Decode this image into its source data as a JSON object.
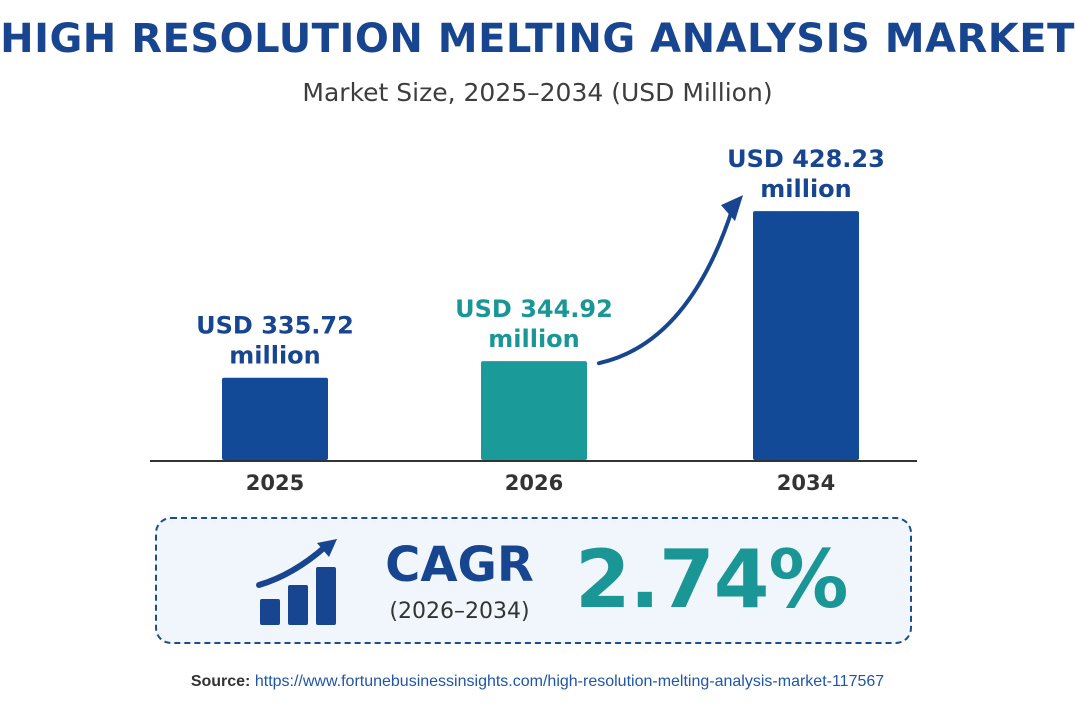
{
  "chart_data": {
    "type": "bar",
    "title": "HIGH RESOLUTION MELTING ANALYSIS MARKET",
    "subtitle": "Market Size, 2025–2034 (USD Million)",
    "categories": [
      "2025",
      "2026",
      "2034"
    ],
    "values": [
      335.72,
      344.92,
      428.23
    ],
    "data_labels": [
      [
        "USD 335.72",
        "million"
      ],
      [
        "USD 344.92",
        "million"
      ],
      [
        "USD 428.23",
        "million"
      ]
    ],
    "colors": [
      "#134a97",
      "#1b9a9a",
      "#134a97"
    ],
    "label_colors": [
      "#17458f",
      "#1b9696",
      "#17458f"
    ],
    "ylim": [
      0,
      450
    ],
    "grid": false,
    "legend": "none",
    "annotation": "growth arrow from 2026 bar to 2034 bar"
  },
  "cagr": {
    "label": "CAGR",
    "period": "(2026–2034)",
    "value": "2.74%",
    "icon": "growth-chart-icon"
  },
  "source": {
    "label": "Source:",
    "url": "https://www.fortunebusinessinsights.com/high-resolution-melting-analysis-market-117567"
  },
  "colors": {
    "primary": "#17458f",
    "accent": "#1b9696",
    "text": "#333333",
    "link": "#1f56a6"
  }
}
